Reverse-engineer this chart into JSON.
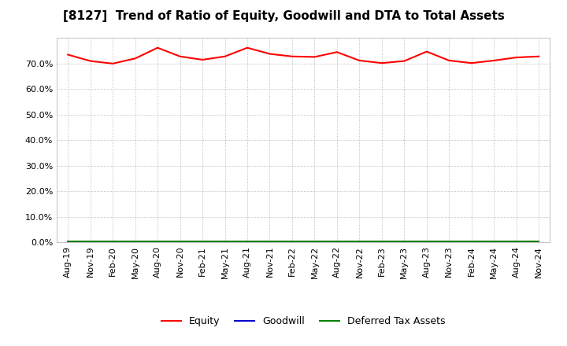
{
  "title": "[8127]  Trend of Ratio of Equity, Goodwill and DTA to Total Assets",
  "x_labels": [
    "Aug-19",
    "Nov-19",
    "Feb-20",
    "May-20",
    "Aug-20",
    "Nov-20",
    "Feb-21",
    "May-21",
    "Aug-21",
    "Nov-21",
    "Feb-22",
    "May-22",
    "Aug-22",
    "Nov-22",
    "Feb-23",
    "May-23",
    "Aug-23",
    "Nov-23",
    "Feb-24",
    "May-24",
    "Aug-24",
    "Nov-24"
  ],
  "equity": [
    0.735,
    0.71,
    0.7,
    0.72,
    0.762,
    0.728,
    0.715,
    0.728,
    0.762,
    0.738,
    0.728,
    0.726,
    0.745,
    0.712,
    0.702,
    0.71,
    0.747,
    0.712,
    0.702,
    0.712,
    0.724,
    0.728
  ],
  "goodwill": [
    0.0,
    0.0,
    0.0,
    0.0,
    0.0,
    0.0,
    0.0,
    0.0,
    0.0,
    0.0,
    0.0,
    0.0,
    0.0,
    0.0,
    0.0,
    0.0,
    0.0,
    0.0,
    0.0,
    0.0,
    0.0,
    0.0
  ],
  "dta": [
    0.004,
    0.004,
    0.004,
    0.004,
    0.004,
    0.004,
    0.004,
    0.004,
    0.004,
    0.004,
    0.004,
    0.004,
    0.004,
    0.004,
    0.004,
    0.004,
    0.004,
    0.004,
    0.004,
    0.004,
    0.004,
    0.004
  ],
  "equity_color": "#ff0000",
  "goodwill_color": "#0000cc",
  "dta_color": "#008000",
  "ylim": [
    0.0,
    0.8
  ],
  "yticks": [
    0.0,
    0.1,
    0.2,
    0.3,
    0.4,
    0.5,
    0.6,
    0.7
  ],
  "background_color": "#ffffff",
  "grid_color": "#aaaaaa",
  "title_fontsize": 11,
  "tick_fontsize": 8,
  "legend_fontsize": 9
}
